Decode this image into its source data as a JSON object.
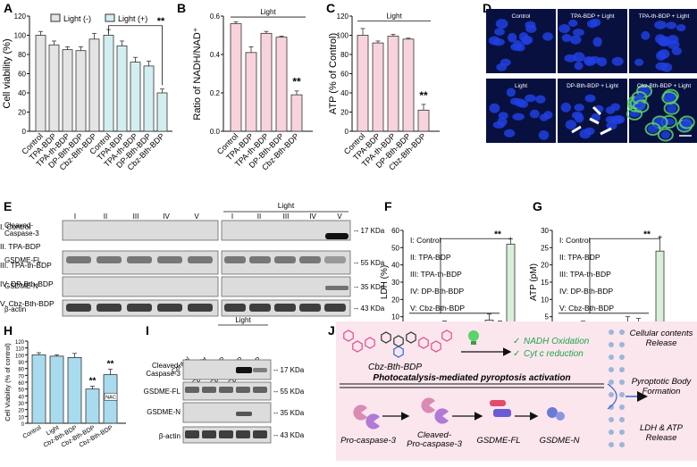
{
  "panels": {
    "A": "A",
    "B": "B",
    "C": "C",
    "D": "D",
    "E": "E",
    "F": "F",
    "G": "G",
    "H": "H",
    "I": "I",
    "J": "J"
  },
  "colors": {
    "grey_bar": "#e4e4e4",
    "cyan_bar": "#d3eef0",
    "pink_bar": "#f9d3dc",
    "green_bar": "#d8efd9",
    "light_blue_bar": "#a9dbef",
    "blot_bg": "#dcdcdc",
    "micro_bg": "#081040",
    "nucleus": "#2040e0",
    "j_bg": "#fbe6ee",
    "green_text": "#21a34a"
  },
  "chart_data": [
    {
      "id": "A",
      "type": "bar",
      "ylabel": "Cell viability (%)",
      "ylim": [
        0,
        120
      ],
      "yticks": [
        0,
        20,
        40,
        60,
        80,
        100,
        120
      ],
      "categories": [
        "Control",
        "TPA-BDP",
        "TPA-th-BDP",
        "DP-Bth-BDP",
        "Cbz-Bth-BDP"
      ],
      "series": [
        {
          "name": "Light (-)",
          "values": [
            100,
            90,
            85,
            84,
            96
          ],
          "err": [
            4,
            4,
            3,
            4,
            6
          ]
        },
        {
          "name": "Light (+)",
          "values": [
            100,
            89,
            72,
            68,
            40
          ],
          "err": [
            6,
            5,
            5,
            5,
            4
          ]
        }
      ],
      "significance": "**"
    },
    {
      "id": "B",
      "type": "bar",
      "ylabel": "Ratio of NADH/NAD⁺",
      "ylim": [
        0,
        0.6
      ],
      "yticks": [
        0.0,
        0.2,
        0.4,
        0.6
      ],
      "group_label": "Light",
      "categories": [
        "Control",
        "TPA-BDP",
        "TPA-th-BDP",
        "DP-Bth-BDP",
        "Cbz-Bth-BDP"
      ],
      "values": [
        0.56,
        0.41,
        0.51,
        0.49,
        0.19
      ],
      "err": [
        0.01,
        0.03,
        0.01,
        0.005,
        0.02
      ],
      "significance": "**"
    },
    {
      "id": "C",
      "type": "bar",
      "ylabel": "ATP (% of Control)",
      "ylim": [
        0,
        120
      ],
      "yticks": [
        0,
        20,
        40,
        60,
        80,
        100,
        120
      ],
      "group_label": "Light",
      "categories": [
        "Control",
        "TPA-BDP",
        "TPA-th-BDP",
        "DP-Bth-BDP",
        "Cbz-Bth-BDP"
      ],
      "values": [
        100,
        92,
        99,
        96,
        22
      ],
      "err": [
        7,
        2,
        2,
        1,
        6
      ],
      "significance": "**"
    },
    {
      "id": "F",
      "type": "bar",
      "ylabel": "LDH (%)",
      "ylim": [
        0,
        60
      ],
      "yticks": [
        0,
        10,
        20,
        30,
        40,
        50,
        60
      ],
      "xgroup_label": "Light",
      "legend": [
        "I: Control",
        "II: TPA-BDP",
        "III: TPA-th-BDP",
        "IV: DP-Bth-BDP",
        "V: Cbz-Bth-BDP"
      ],
      "categories": [
        "I",
        "II",
        "III",
        "IV",
        "V",
        "I",
        "II",
        "III",
        "IV",
        "V"
      ],
      "values": [
        0,
        0,
        0,
        6,
        3,
        5.5,
        6,
        8,
        7,
        52
      ],
      "err": [
        4,
        0,
        0,
        1.5,
        0.5,
        0.5,
        0.5,
        3.5,
        0.5,
        3
      ],
      "significance": "**"
    },
    {
      "id": "G",
      "type": "bar",
      "ylabel": "ATP (pM)",
      "ylim": [
        0,
        30
      ],
      "yticks": [
        0,
        5,
        10,
        15,
        20,
        25,
        30
      ],
      "xgroup_label": "Light",
      "legend": [
        "I: Control",
        "II: TPA-BDP",
        "III: TPA-th-BDP",
        "IV: DP-Bth-BDP",
        "V: Cbz-Bth-BDP"
      ],
      "categories": [
        "I",
        "II",
        "III",
        "IV",
        "V",
        "I",
        "II",
        "III",
        "IV",
        "V"
      ],
      "values": [
        0.5,
        1.5,
        2.5,
        2,
        1.5,
        1.5,
        3.5,
        3,
        2,
        24
      ],
      "err": [
        0.5,
        0.8,
        1.2,
        1,
        0.5,
        1,
        1.5,
        1.5,
        1,
        4
      ],
      "significance": "**"
    },
    {
      "id": "H",
      "type": "bar",
      "ylabel": "Cell Viability (% of control)",
      "ylim": [
        0,
        120
      ],
      "yticks": [
        0,
        10,
        20,
        30,
        40,
        50,
        60,
        70,
        80,
        90,
        100,
        110,
        120
      ],
      "categories": [
        "Control",
        "Light",
        "Cbz-Bth-BDP",
        "Cbz-Bth-BDP",
        "Cbz-Bth-BDP"
      ],
      "values": [
        100,
        98,
        96,
        50,
        71
      ],
      "err": [
        3,
        2,
        6,
        4,
        8
      ],
      "significance": [
        "**",
        "**"
      ],
      "annotation": "NAC"
    }
  ],
  "microscopy": {
    "tiles": [
      "Control",
      "TPA-BDP + Light",
      "TPA-th-BDP + Light",
      "Light",
      "DP-Bth-BDP + Light",
      "Cbz-Bth-BDP + Light"
    ]
  },
  "blotE": {
    "lanes": [
      "I",
      "II",
      "III",
      "IV",
      "V"
    ],
    "light_label": "Light",
    "rows": [
      "Cleaved-\nCaspase-3",
      "GSDME-FL",
      "GSDME-N",
      "β-actin"
    ],
    "markers": [
      "-- 17 KDa",
      "-- 55 KDa",
      "-- 35 KDa",
      "-- 43 KDa"
    ],
    "legend": [
      "I. Control",
      "II. TPA-BDP",
      "III. TPA-th-BDP",
      "IV. DP-Bth-BDP",
      "V. Cbz-Bth-BDP"
    ]
  },
  "blotI": {
    "lanes": [
      "Control",
      "Light",
      "Cbz-Bth-BDP",
      "Cbz-Bth-BDP",
      "Cbz-Bth-BDP\n+ NAC"
    ],
    "light_label": "Light",
    "rows": [
      "Cleaved-\nCaspase-3",
      "GSDME-FL",
      "GSDME-N",
      "β-actin"
    ],
    "markers": [
      "-- 17 KDa",
      "-- 55 KDa",
      "-- 35 KDa",
      "-- 43 KDa"
    ]
  },
  "schemeJ": {
    "compound": "Cbz-Bth-BDP",
    "checks": [
      "NADH Oxidation",
      "Cyt c reduction"
    ],
    "banner": "Photocatalysis-mediated pyroptosis activation",
    "steps": [
      "Pro-caspase-3",
      "Cleaved-\nPro-caspase-3",
      "GSDME-FL",
      "GSDME-N"
    ],
    "outcomes": [
      "Cellular contents\nRelease",
      "Pyroptotic Body\nFormation",
      "LDH & ATP\nRelease"
    ],
    "check_mark": "✓"
  }
}
